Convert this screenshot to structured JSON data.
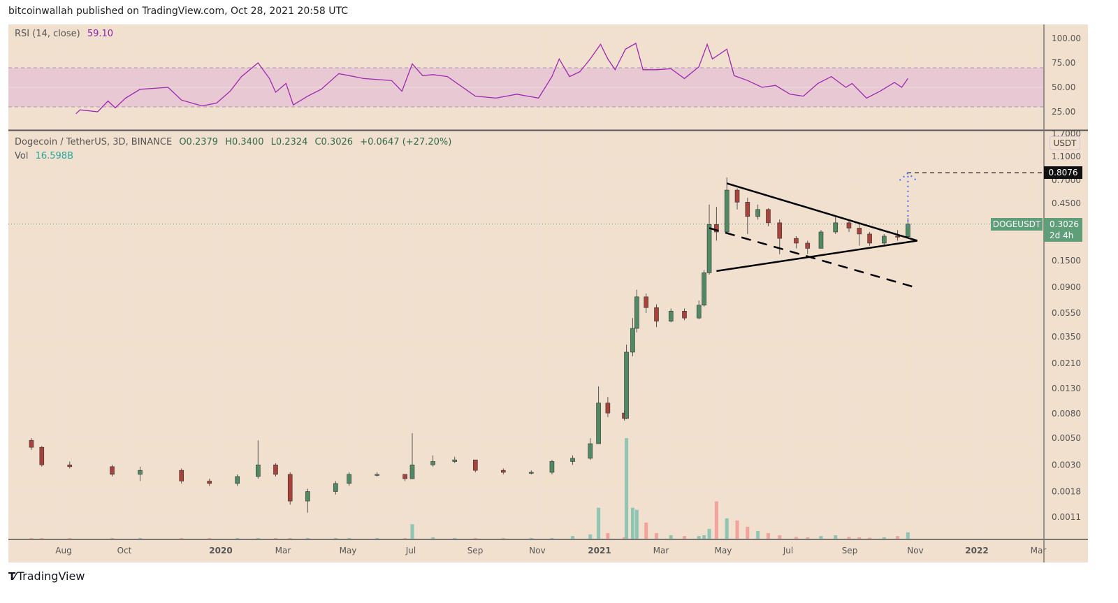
{
  "header": {
    "published": "bitcoinwallah published on TradingView.com, Oct 28, 2021 20:58 UTC"
  },
  "rsi_legend": {
    "label": "RSI (14, close)",
    "value": "59.10"
  },
  "main_legend": {
    "symbol": "Dogecoin / TetherUS, 3D, BINANCE",
    "open": "O0.2379",
    "high": "H0.3400",
    "low": "L0.2324",
    "close": "C0.3026",
    "change": "+0.0647 (+27.20%)",
    "vol_label": "Vol",
    "vol_value": "16.598B"
  },
  "price_axis": {
    "currency": "USDT",
    "target_label": "0.8076",
    "symbol_tag": "DOGEUSDT",
    "last_price": "0.3026",
    "countdown": "2d 4h"
  },
  "footer": {
    "brand": "TradingView",
    "logo": "TV"
  },
  "colors": {
    "background": "#f2e0cf",
    "up": "#4f8a64",
    "down": "#a8423a",
    "vol_up": "#8fc6b3",
    "vol_down": "#f2a39c",
    "rsi_line": "#9c27b0",
    "rsi_band": "#e8c8d3",
    "target_arrow": "#4a7dff"
  },
  "chart_data": {
    "type": "candlestick",
    "scale": "log",
    "grid": true,
    "x_ticks": [
      "Aug",
      "Oct",
      "2020",
      "Mar",
      "May",
      "Jul",
      "Sep",
      "Nov",
      "2021",
      "Mar",
      "May",
      "Jul",
      "Sep",
      "Nov",
      "2022",
      "Mar"
    ],
    "y_ticks": [
      "1.7000",
      "1.1000",
      "0.7000",
      "0.4500",
      "0.1500",
      "0.0900",
      "0.0550",
      "0.0350",
      "0.0210",
      "0.0130",
      "0.0080",
      "0.0050",
      "0.0030",
      "0.0018",
      "0.0011"
    ],
    "rsi_ticks": [
      "100.00",
      "75.00",
      "50.00",
      "25.00"
    ],
    "rsi_band": [
      30,
      70
    ],
    "candles": [
      [
        "2019-07-02",
        0.0048,
        0.005,
        0.004,
        0.0042
      ],
      [
        "2019-07-12",
        0.0042,
        0.0043,
        0.0029,
        0.003
      ],
      [
        "2019-08-08",
        0.003,
        0.0032,
        0.0028,
        0.0029
      ],
      [
        "2019-09-18",
        0.0029,
        0.003,
        0.0024,
        0.0025
      ],
      [
        "2019-10-15",
        0.0025,
        0.0029,
        0.0022,
        0.0027
      ],
      [
        "2019-11-24",
        0.0027,
        0.0028,
        0.0021,
        0.0022
      ],
      [
        "2019-12-21",
        0.0022,
        0.0023,
        0.002,
        0.0021
      ],
      [
        "2020-01-17",
        0.0021,
        0.0025,
        0.002,
        0.0024
      ],
      [
        "2020-02-06",
        0.0024,
        0.0048,
        0.0023,
        0.003
      ],
      [
        "2020-02-23",
        0.003,
        0.0031,
        0.0024,
        0.0025
      ],
      [
        "2020-03-08",
        0.0025,
        0.0026,
        0.0014,
        0.0015
      ],
      [
        "2020-03-25",
        0.0015,
        0.0019,
        0.0012,
        0.0018
      ],
      [
        "2020-04-21",
        0.0018,
        0.0022,
        0.0017,
        0.0021
      ],
      [
        "2020-05-04",
        0.0021,
        0.0026,
        0.002,
        0.0025
      ],
      [
        "2020-05-31",
        0.0025,
        0.0026,
        0.0024,
        0.0025
      ],
      [
        "2020-06-27",
        0.0025,
        0.0025,
        0.0022,
        0.0023
      ],
      [
        "2020-07-04",
        0.0023,
        0.0055,
        0.0023,
        0.003
      ],
      [
        "2020-07-24",
        0.003,
        0.0036,
        0.0029,
        0.0032
      ],
      [
        "2020-08-14",
        0.0032,
        0.0035,
        0.0031,
        0.0033
      ],
      [
        "2020-09-03",
        0.0033,
        0.0033,
        0.0026,
        0.0027
      ],
      [
        "2020-09-30",
        0.0027,
        0.0028,
        0.0025,
        0.0026
      ],
      [
        "2020-10-27",
        0.0026,
        0.0027,
        0.0025,
        0.0026
      ],
      [
        "2020-11-16",
        0.0026,
        0.0033,
        0.0025,
        0.0032
      ],
      [
        "2020-12-06",
        0.0032,
        0.0036,
        0.003,
        0.0034
      ],
      [
        "2020-12-23",
        0.0034,
        0.005,
        0.0033,
        0.0045
      ],
      [
        "2020-12-31",
        0.0045,
        0.0135,
        0.0045,
        0.0098
      ],
      [
        "2021-01-09",
        0.0098,
        0.011,
        0.0075,
        0.0081
      ],
      [
        "2021-01-25",
        0.0081,
        0.0085,
        0.007,
        0.0073
      ],
      [
        "2021-01-27",
        0.0073,
        0.03,
        0.0072,
        0.026
      ],
      [
        "2021-02-02",
        0.026,
        0.05,
        0.024,
        0.041
      ],
      [
        "2021-02-06",
        0.041,
        0.086,
        0.038,
        0.075
      ],
      [
        "2021-02-15",
        0.075,
        0.08,
        0.055,
        0.061
      ],
      [
        "2021-02-25",
        0.061,
        0.065,
        0.042,
        0.047
      ],
      [
        "2021-03-11",
        0.047,
        0.06,
        0.046,
        0.057
      ],
      [
        "2021-03-24",
        0.057,
        0.06,
        0.048,
        0.05
      ],
      [
        "2021-04-07",
        0.05,
        0.07,
        0.049,
        0.064
      ],
      [
        "2021-04-12",
        0.064,
        0.125,
        0.062,
        0.119
      ],
      [
        "2021-04-17",
        0.119,
        0.44,
        0.115,
        0.3
      ],
      [
        "2021-04-24",
        0.3,
        0.42,
        0.22,
        0.26
      ],
      [
        "2021-05-04",
        0.26,
        0.74,
        0.25,
        0.58
      ],
      [
        "2021-05-14",
        0.58,
        0.6,
        0.4,
        0.46
      ],
      [
        "2021-05-24",
        0.46,
        0.5,
        0.25,
        0.35
      ],
      [
        "2021-06-03",
        0.35,
        0.44,
        0.33,
        0.4
      ],
      [
        "2021-06-13",
        0.4,
        0.41,
        0.29,
        0.31
      ],
      [
        "2021-06-24",
        0.31,
        0.33,
        0.17,
        0.23
      ],
      [
        "2021-07-10",
        0.23,
        0.24,
        0.19,
        0.21
      ],
      [
        "2021-07-21",
        0.21,
        0.22,
        0.17,
        0.19
      ],
      [
        "2021-08-03",
        0.19,
        0.27,
        0.19,
        0.26
      ],
      [
        "2021-08-17",
        0.26,
        0.35,
        0.25,
        0.31
      ],
      [
        "2021-08-30",
        0.31,
        0.32,
        0.26,
        0.28
      ],
      [
        "2021-09-09",
        0.28,
        0.31,
        0.2,
        0.25
      ],
      [
        "2021-09-19",
        0.25,
        0.26,
        0.2,
        0.21
      ],
      [
        "2021-10-03",
        0.21,
        0.25,
        0.2,
        0.24
      ],
      [
        "2021-10-16",
        0.24,
        0.27,
        0.22,
        0.2379
      ],
      [
        "2021-10-26",
        0.2379,
        0.34,
        0.2324,
        0.3026
      ]
    ],
    "volume_billions": [
      2,
      2,
      1,
      1,
      1,
      1,
      1,
      1,
      3,
      1,
      3,
      2,
      1,
      1,
      1,
      1,
      36,
      5,
      3,
      2,
      1,
      1,
      3,
      8,
      12,
      75,
      15,
      5,
      240,
      75,
      70,
      40,
      15,
      10,
      8,
      8,
      10,
      25,
      90,
      50,
      45,
      30,
      20,
      15,
      10,
      6,
      5,
      8,
      10,
      6,
      5,
      4,
      5,
      8,
      16.598
    ],
    "rsi": [
      [
        "2019-08-14",
        23
      ],
      [
        "2019-08-18",
        27
      ],
      [
        "2019-09-04",
        25
      ],
      [
        "2019-09-14",
        36
      ],
      [
        "2019-09-21",
        29
      ],
      [
        "2019-10-01",
        39
      ],
      [
        "2019-10-15",
        48
      ],
      [
        "2019-11-11",
        50
      ],
      [
        "2019-11-24",
        37
      ],
      [
        "2019-12-14",
        31
      ],
      [
        "2019-12-28",
        34
      ],
      [
        "2020-01-10",
        46
      ],
      [
        "2020-01-21",
        61
      ],
      [
        "2020-02-06",
        75
      ],
      [
        "2020-02-17",
        59
      ],
      [
        "2020-02-23",
        45
      ],
      [
        "2020-03-04",
        54
      ],
      [
        "2020-03-11",
        32
      ],
      [
        "2020-03-25",
        41
      ],
      [
        "2020-04-07",
        48
      ],
      [
        "2020-04-24",
        64
      ],
      [
        "2020-05-04",
        62
      ],
      [
        "2020-05-18",
        59
      ],
      [
        "2020-06-14",
        57
      ],
      [
        "2020-06-24",
        46
      ],
      [
        "2020-07-04",
        74
      ],
      [
        "2020-07-14",
        62
      ],
      [
        "2020-07-24",
        63
      ],
      [
        "2020-08-07",
        61
      ],
      [
        "2020-09-03",
        41
      ],
      [
        "2020-09-23",
        39
      ],
      [
        "2020-10-13",
        43
      ],
      [
        "2020-11-03",
        39
      ],
      [
        "2020-11-16",
        61
      ],
      [
        "2020-11-23",
        79
      ],
      [
        "2020-12-03",
        61
      ],
      [
        "2020-12-13",
        66
      ],
      [
        "2020-12-23",
        79
      ],
      [
        "2021-01-02",
        94
      ],
      [
        "2021-01-09",
        79
      ],
      [
        "2021-01-16",
        68
      ],
      [
        "2021-01-26",
        89
      ],
      [
        "2021-02-05",
        95
      ],
      [
        "2021-02-12",
        68
      ],
      [
        "2021-02-25",
        68
      ],
      [
        "2021-03-11",
        69
      ],
      [
        "2021-03-24",
        59
      ],
      [
        "2021-04-07",
        71
      ],
      [
        "2021-04-15",
        94
      ],
      [
        "2021-04-20",
        79
      ],
      [
        "2021-05-04",
        89
      ],
      [
        "2021-05-11",
        62
      ],
      [
        "2021-05-24",
        57
      ],
      [
        "2021-06-07",
        50
      ],
      [
        "2021-06-20",
        52
      ],
      [
        "2021-07-04",
        43
      ],
      [
        "2021-07-17",
        41
      ],
      [
        "2021-07-31",
        54
      ],
      [
        "2021-08-13",
        61
      ],
      [
        "2021-08-27",
        50
      ],
      [
        "2021-09-02",
        54
      ],
      [
        "2021-09-16",
        39
      ],
      [
        "2021-09-29",
        46
      ],
      [
        "2021-10-13",
        55
      ],
      [
        "2021-10-20",
        50
      ],
      [
        "2021-10-26",
        59.1
      ]
    ],
    "drawings": {
      "triangle_upper": [
        [
          "2021-05-04",
          0.66
        ],
        [
          "2021-11-04",
          0.22
        ]
      ],
      "triangle_lower": [
        [
          "2021-04-24",
          0.123
        ],
        [
          "2021-11-04",
          0.22
        ]
      ],
      "dashed_support": [
        [
          "2021-04-17",
          0.28
        ],
        [
          "2021-11-02",
          0.09
        ]
      ],
      "target_level": 0.8076,
      "target_arrow": [
        [
          "2021-10-26",
          0.29
        ],
        [
          "2021-10-26",
          0.8
        ]
      ]
    }
  }
}
